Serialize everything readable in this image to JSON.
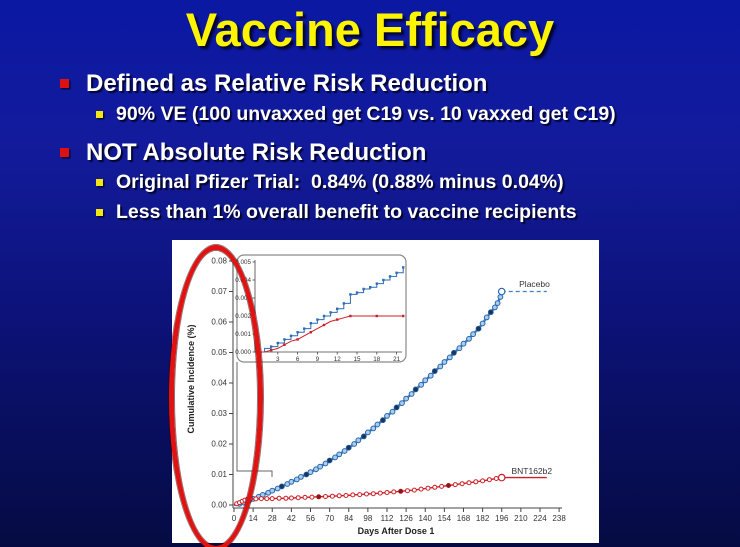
{
  "slide": {
    "title": "Vaccine Efficacy",
    "bullets": [
      {
        "level": 1,
        "text": "Defined as Relative Risk Reduction"
      },
      {
        "level": 2,
        "text": "90% VE (100 unvaxxed get C19 vs. 10 vaxxed get C19)"
      },
      {
        "level": 1,
        "text": "NOT Absolute Risk Reduction"
      },
      {
        "level": 2,
        "text": "Original Pfizer Trial:  0.84% (0.88% minus 0.04%)"
      },
      {
        "level": 2,
        "text": "Less than 1% overall benefit to vaccine recipients"
      }
    ],
    "colors": {
      "background_top": "#0a18a2",
      "background_bottom": "#050b42",
      "title": "#fcf400",
      "body_text": "#ffffff",
      "bullet_level1": "#dd1111",
      "bullet_level2": "#f2e613",
      "annotation_ellipse": "#e01212"
    }
  },
  "chart_data": {
    "type": "line",
    "title": "",
    "xlabel": "Days After Dose 1",
    "ylabel": "Cumulative Incidence (%)",
    "xlim": [
      0,
      238
    ],
    "ylim": [
      0,
      0.08
    ],
    "grid": false,
    "x_ticks": [
      0,
      14,
      28,
      42,
      56,
      70,
      84,
      98,
      112,
      126,
      140,
      154,
      168,
      182,
      196,
      210,
      224,
      238
    ],
    "y_ticks": [
      0,
      0.01,
      0.02,
      0.03,
      0.04,
      0.05,
      0.06,
      0.07,
      0.08
    ],
    "series": [
      {
        "name": "Placebo",
        "label": "Placebo",
        "label_at": [
          220,
          0.0715
        ],
        "color": "#3b7fc4",
        "marker_stroke": "#2a66ad",
        "marker_fill": "#a9cdec",
        "dark_marker_fill": "#17375e",
        "line_width": 2.4,
        "points": [
          [
            0,
            0
          ],
          [
            4,
            0.0004
          ],
          [
            7,
            0.0008
          ],
          [
            11,
            0.0014
          ],
          [
            14,
            0.002
          ],
          [
            18,
            0.0027
          ],
          [
            21,
            0.0033
          ],
          [
            25,
            0.004
          ],
          [
            28,
            0.0047
          ],
          [
            32,
            0.0054
          ],
          [
            35,
            0.0061
          ],
          [
            39,
            0.0069
          ],
          [
            42,
            0.0076
          ],
          [
            46,
            0.0084
          ],
          [
            49,
            0.0092
          ],
          [
            53,
            0.01
          ],
          [
            56,
            0.0108
          ],
          [
            60,
            0.0117
          ],
          [
            63,
            0.0126
          ],
          [
            67,
            0.0136
          ],
          [
            70,
            0.0146
          ],
          [
            74,
            0.0156
          ],
          [
            77,
            0.0166
          ],
          [
            81,
            0.0177
          ],
          [
            84,
            0.0188
          ],
          [
            88,
            0.02
          ],
          [
            91,
            0.0212
          ],
          [
            95,
            0.0225
          ],
          [
            98,
            0.0238
          ],
          [
            102,
            0.0251
          ],
          [
            105,
            0.0264
          ],
          [
            109,
            0.0278
          ],
          [
            112,
            0.0292
          ],
          [
            116,
            0.0306
          ],
          [
            119,
            0.032
          ],
          [
            123,
            0.0334
          ],
          [
            126,
            0.0349
          ],
          [
            130,
            0.0364
          ],
          [
            133,
            0.0379
          ],
          [
            137,
            0.0394
          ],
          [
            140,
            0.0409
          ],
          [
            144,
            0.0424
          ],
          [
            147,
            0.0439
          ],
          [
            151,
            0.0454
          ],
          [
            154,
            0.0469
          ],
          [
            158,
            0.0484
          ],
          [
            161,
            0.0499
          ],
          [
            165,
            0.0514
          ],
          [
            168,
            0.0529
          ],
          [
            172,
            0.0545
          ],
          [
            175,
            0.056
          ],
          [
            179,
            0.0578
          ],
          [
            182,
            0.0595
          ],
          [
            185,
            0.0615
          ],
          [
            188,
            0.0632
          ],
          [
            191,
            0.0648
          ],
          [
            193,
            0.0662
          ],
          [
            195,
            0.0682
          ],
          [
            196,
            0.07
          ]
        ],
        "dark_points": [
          [
            35,
            0.0061
          ],
          [
            53,
            0.01
          ],
          [
            70,
            0.0146
          ],
          [
            84,
            0.0188
          ],
          [
            95,
            0.0225
          ],
          [
            109,
            0.0278
          ],
          [
            119,
            0.032
          ],
          [
            133,
            0.0379
          ],
          [
            147,
            0.0439
          ],
          [
            161,
            0.0499
          ],
          [
            179,
            0.0578
          ],
          [
            188,
            0.0632
          ]
        ],
        "censor_tail": {
          "style": "dashed",
          "points": [
            [
              196,
              0.07
            ],
            [
              229,
              0.07
            ]
          ]
        }
      },
      {
        "name": "BNT162b2",
        "label": "BNT162b2",
        "label_at": [
          218,
          0.0102
        ],
        "color": "#cb2027",
        "marker_stroke": "#cb2027",
        "marker_fill": "#ffffff",
        "dark_marker_fill": "#8f1418",
        "line_width": 1.4,
        "points": [
          [
            0,
            0
          ],
          [
            2,
            0.0004
          ],
          [
            4,
            0.0008
          ],
          [
            6,
            0.0012
          ],
          [
            8,
            0.0016
          ],
          [
            10,
            0.0019
          ],
          [
            12,
            0.002
          ],
          [
            16,
            0.002
          ],
          [
            20,
            0.0021
          ],
          [
            24,
            0.0021
          ],
          [
            28,
            0.0021
          ],
          [
            33,
            0.0022
          ],
          [
            38,
            0.0022
          ],
          [
            42,
            0.0023
          ],
          [
            47,
            0.0024
          ],
          [
            52,
            0.0025
          ],
          [
            57,
            0.0026
          ],
          [
            62,
            0.0027
          ],
          [
            67,
            0.0028
          ],
          [
            72,
            0.0029
          ],
          [
            77,
            0.003
          ],
          [
            82,
            0.0031
          ],
          [
            87,
            0.0033
          ],
          [
            92,
            0.0034
          ],
          [
            97,
            0.0036
          ],
          [
            102,
            0.0037
          ],
          [
            107,
            0.0039
          ],
          [
            112,
            0.0041
          ],
          [
            117,
            0.0043
          ],
          [
            122,
            0.0045
          ],
          [
            127,
            0.0047
          ],
          [
            132,
            0.0049
          ],
          [
            137,
            0.0052
          ],
          [
            142,
            0.0055
          ],
          [
            147,
            0.0058
          ],
          [
            152,
            0.0061
          ],
          [
            157,
            0.0064
          ],
          [
            162,
            0.0067
          ],
          [
            167,
            0.007
          ],
          [
            172,
            0.0073
          ],
          [
            177,
            0.0076
          ],
          [
            182,
            0.0079
          ],
          [
            187,
            0.0083
          ],
          [
            192,
            0.0087
          ],
          [
            196,
            0.009
          ]
        ],
        "dark_points": [
          [
            62,
            0.0027
          ],
          [
            122,
            0.0045
          ],
          [
            157,
            0.0064
          ]
        ],
        "censor_tail": {
          "style": "solid",
          "points": [
            [
              196,
              0.009
            ],
            [
              229,
              0.009
            ]
          ]
        }
      }
    ],
    "inset": {
      "xlim": [
        0,
        22
      ],
      "ylim": [
        0,
        0.005
      ],
      "x_ticks": [
        0,
        3,
        6,
        9,
        12,
        15,
        18,
        21
      ],
      "y_ticks": [
        0,
        0.001,
        0.002,
        0.003,
        0.004,
        0.005
      ],
      "series": [
        {
          "name": "Placebo",
          "color": "#2b6cb5",
          "step": true,
          "points": [
            [
              0,
              0
            ],
            [
              1,
              0.0002
            ],
            [
              2,
              0.0003
            ],
            [
              3,
              0.0005
            ],
            [
              4,
              0.0007
            ],
            [
              5,
              0.0009
            ],
            [
              6,
              0.0011
            ],
            [
              7,
              0.0013
            ],
            [
              8,
              0.0016
            ],
            [
              9,
              0.0018
            ],
            [
              10,
              0.002
            ],
            [
              11,
              0.0022
            ],
            [
              12,
              0.0024
            ],
            [
              13,
              0.0027
            ],
            [
              14,
              0.0032
            ],
            [
              15,
              0.0033
            ],
            [
              16,
              0.0035
            ],
            [
              17,
              0.0036
            ],
            [
              18,
              0.0038
            ],
            [
              19,
              0.004
            ],
            [
              20,
              0.0042
            ],
            [
              21,
              0.0044
            ],
            [
              22,
              0.0047
            ]
          ]
        },
        {
          "name": "BNT162b2",
          "color": "#cb2027",
          "step": false,
          "points": [
            [
              0,
              0
            ],
            [
              1,
              0
            ],
            [
              2,
              0.0001
            ],
            [
              3,
              0.0002
            ],
            [
              4,
              0.0004
            ],
            [
              5,
              0.0006
            ],
            [
              6,
              0.0007
            ],
            [
              7,
              0.0009
            ],
            [
              8,
              0.0011
            ],
            [
              9,
              0.0013
            ],
            [
              10,
              0.0015
            ],
            [
              11,
              0.0017
            ],
            [
              12,
              0.0018
            ],
            [
              13,
              0.0019
            ],
            [
              14,
              0.002
            ],
            [
              16,
              0.002
            ],
            [
              18,
              0.002
            ],
            [
              20,
              0.002
            ],
            [
              22,
              0.002
            ]
          ]
        }
      ]
    },
    "annotations": [
      {
        "type": "ellipse",
        "target": "y-axis scale",
        "color": "#e01212",
        "note": "hand-drawn red ellipse circling the cumulative-incidence axis values"
      }
    ]
  }
}
